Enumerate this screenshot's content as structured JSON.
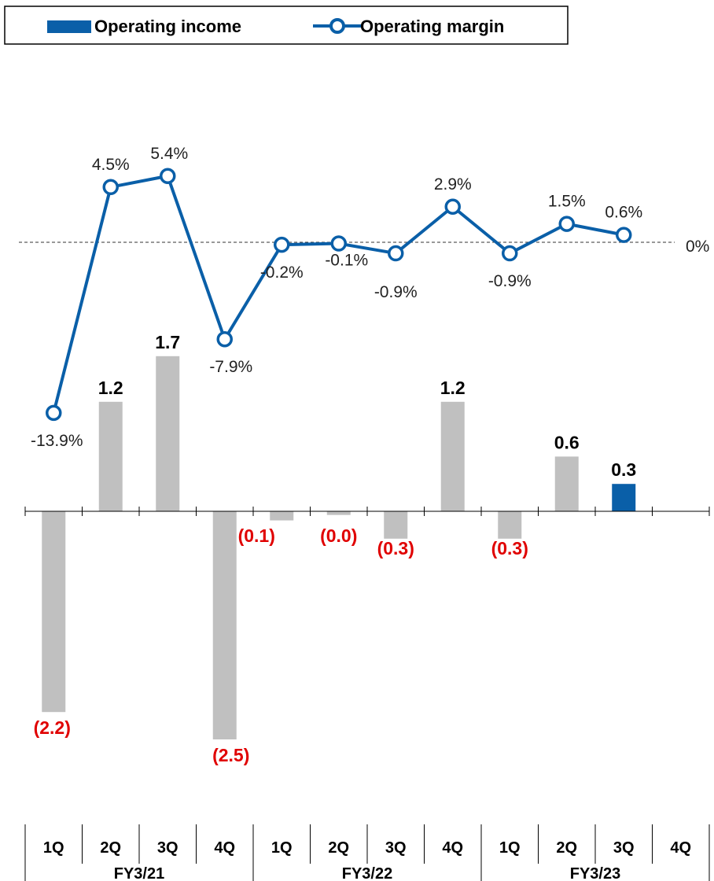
{
  "chart_data": {
    "type": "bar",
    "legend": [
      {
        "name": "Operating income",
        "kind": "bar",
        "color": "#0a5fa8"
      },
      {
        "name": "Operating margin",
        "kind": "line-marker",
        "color": "#0a5fa8"
      }
    ],
    "quarters": [
      "1Q",
      "2Q",
      "3Q",
      "4Q",
      "1Q",
      "2Q",
      "3Q",
      "4Q",
      "1Q",
      "2Q",
      "3Q",
      "4Q"
    ],
    "fiscal_years": [
      "FY3/21",
      "FY3/22",
      "FY3/23"
    ],
    "series": [
      {
        "name": "Operating income",
        "type": "bar",
        "values": [
          -2.2,
          1.2,
          1.7,
          -2.5,
          -0.1,
          -0.04,
          -0.3,
          1.2,
          -0.3,
          0.6,
          0.3,
          null
        ],
        "labels": [
          "(2.2)",
          "1.2",
          "1.7",
          "(2.5)",
          "(0.1)",
          "(0.0)",
          "(0.3)",
          "1.2",
          "(0.3)",
          "0.6",
          "0.3",
          ""
        ],
        "highlight_index": 10
      },
      {
        "name": "Operating margin",
        "type": "line",
        "values": [
          -13.9,
          4.5,
          5.4,
          -7.9,
          -0.2,
          -0.1,
          -0.9,
          2.9,
          -0.9,
          1.5,
          0.6,
          null
        ],
        "labels": [
          "-13.9%",
          "4.5%",
          "5.4%",
          "-7.9%",
          "-0.2%",
          "-0.1%",
          "-0.9%",
          "2.9%",
          "-0.9%",
          "1.5%",
          "0.6%",
          ""
        ]
      }
    ],
    "zero_line_label": "0%",
    "colors": {
      "bar": "#c0c0c0",
      "bar_highlight": "#0a5fa8",
      "line": "#0a5fa8",
      "negative_label": "#e00000",
      "positive_label": "#000000"
    }
  }
}
